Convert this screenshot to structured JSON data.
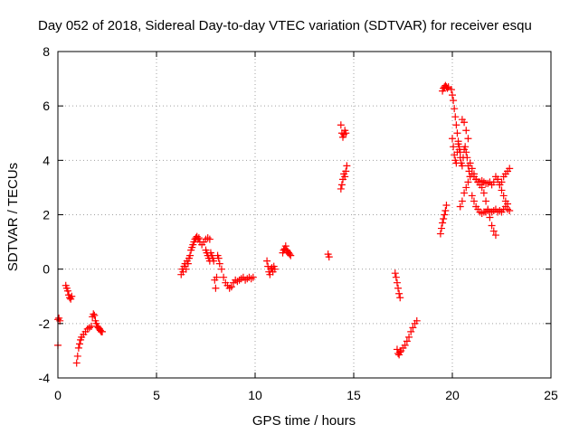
{
  "chart_data": {
    "type": "scatter",
    "title": "Day 052 of 2018, Sidereal Day-to-day VTEC variation (SDTVAR) for receiver esqu",
    "xlabel": "GPS time / hours",
    "ylabel": "SDTVAR / TECUs",
    "xlim": [
      0,
      25
    ],
    "ylim": [
      -4,
      8
    ],
    "xticks": [
      0,
      5,
      10,
      15,
      20,
      25
    ],
    "yticks": [
      -4,
      -2,
      0,
      2,
      4,
      6,
      8
    ],
    "grid": true,
    "marker": "+",
    "color": "#ff0000",
    "segments": [
      {
        "x": [
          0.0,
          0.05,
          0.1
        ],
        "y": [
          -1.85,
          -1.8,
          -1.9
        ]
      },
      {
        "x": [
          0.0
        ],
        "y": [
          -2.8
        ]
      },
      {
        "x": [
          0.4,
          0.45,
          0.5,
          0.55,
          0.6,
          0.65,
          0.7
        ],
        "y": [
          -0.6,
          -0.7,
          -0.8,
          -0.95,
          -1.05,
          -1.1,
          -1.0
        ]
      },
      {
        "x": [
          0.95,
          1.0,
          1.05,
          1.1,
          1.15,
          1.2,
          1.3,
          1.4,
          1.5,
          1.6,
          1.7
        ],
        "y": [
          -3.45,
          -3.2,
          -2.9,
          -2.75,
          -2.6,
          -2.5,
          -2.4,
          -2.3,
          -2.2,
          -2.15,
          -2.1
        ]
      },
      {
        "x": [
          1.75,
          1.8,
          1.85,
          1.9,
          1.95,
          2.0,
          2.05,
          2.1,
          2.15,
          2.2,
          2.25
        ],
        "y": [
          -1.75,
          -1.65,
          -1.7,
          -1.9,
          -2.0,
          -2.1,
          -2.15,
          -2.2,
          -2.25,
          -2.3,
          -2.3
        ]
      },
      {
        "x": [
          6.25,
          6.3,
          6.35,
          6.4,
          6.45,
          6.5,
          6.55,
          6.6,
          6.65,
          6.7,
          6.75,
          6.8,
          6.85,
          6.9,
          6.95,
          7.0,
          7.05,
          7.1,
          7.15,
          7.2,
          7.3,
          7.4,
          7.5,
          7.6,
          7.7
        ],
        "y": [
          -0.2,
          0.0,
          -0.1,
          0.1,
          0.2,
          0.0,
          0.3,
          0.2,
          0.4,
          0.5,
          0.7,
          0.8,
          0.9,
          1.0,
          1.1,
          1.15,
          1.2,
          1.1,
          1.15,
          1.0,
          0.9,
          1.0,
          1.1,
          1.15,
          1.1
        ]
      },
      {
        "x": [
          7.5,
          7.55,
          7.6,
          7.65,
          7.7,
          7.75,
          7.8,
          7.85,
          7.9
        ],
        "y": [
          0.7,
          0.6,
          0.5,
          0.4,
          0.3,
          0.6,
          0.5,
          0.4,
          0.3
        ]
      },
      {
        "x": [
          7.95,
          8.0,
          8.05,
          8.1,
          8.15,
          8.2,
          8.3,
          8.4,
          8.5,
          8.6,
          8.7,
          8.8,
          8.9,
          9.0,
          9.1,
          9.2,
          9.3,
          9.4,
          9.5,
          9.6,
          9.7,
          9.8,
          9.9
        ],
        "y": [
          -0.4,
          -0.7,
          -0.3,
          0.5,
          0.4,
          0.2,
          0.0,
          -0.3,
          -0.5,
          -0.6,
          -0.7,
          -0.65,
          -0.5,
          -0.4,
          -0.45,
          -0.4,
          -0.35,
          -0.3,
          -0.4,
          -0.35,
          -0.3,
          -0.35,
          -0.3
        ]
      },
      {
        "x": [
          10.6,
          10.65,
          10.7,
          10.75,
          10.8,
          10.85,
          10.9,
          10.95,
          11.0
        ],
        "y": [
          0.3,
          0.1,
          -0.1,
          -0.2,
          0.0,
          0.05,
          -0.1,
          0.1,
          0.0
        ]
      },
      {
        "x": [
          11.4,
          11.45,
          11.5,
          11.55,
          11.6,
          11.65,
          11.7,
          11.75,
          11.8
        ],
        "y": [
          0.6,
          0.7,
          0.75,
          0.85,
          0.7,
          0.65,
          0.6,
          0.55,
          0.5
        ]
      },
      {
        "x": [
          13.7,
          13.75
        ],
        "y": [
          0.55,
          0.45
        ]
      },
      {
        "x": [
          14.35,
          14.4,
          14.45,
          14.5,
          14.55,
          14.6
        ],
        "y": [
          5.3,
          5.0,
          4.85,
          4.95,
          5.1,
          5.0
        ]
      },
      {
        "x": [
          14.35,
          14.4,
          14.45,
          14.5,
          14.55,
          14.6,
          14.65
        ],
        "y": [
          2.95,
          3.1,
          3.3,
          3.5,
          3.4,
          3.6,
          3.8
        ]
      },
      {
        "x": [
          17.1,
          17.15,
          17.2,
          17.25,
          17.3,
          17.35
        ],
        "y": [
          -0.15,
          -0.3,
          -0.5,
          -0.7,
          -0.9,
          -1.05
        ]
      },
      {
        "x": [
          17.2,
          17.25,
          17.3,
          17.35,
          17.4,
          17.5,
          17.6,
          17.7,
          17.8,
          17.9,
          18.0,
          18.1,
          18.2
        ],
        "y": [
          -2.95,
          -3.1,
          -3.15,
          -3.05,
          -3.0,
          -2.9,
          -2.8,
          -2.65,
          -2.5,
          -2.3,
          -2.15,
          -2.0,
          -1.9
        ]
      },
      {
        "x": [
          19.4,
          19.45,
          19.5,
          19.55,
          19.6,
          19.65,
          19.7
        ],
        "y": [
          1.3,
          1.5,
          1.7,
          1.85,
          2.0,
          2.15,
          2.35
        ]
      },
      {
        "x": [
          19.5,
          19.55,
          19.6,
          19.65,
          19.7,
          19.75,
          19.8
        ],
        "y": [
          6.55,
          6.65,
          6.7,
          6.75,
          6.7,
          6.65,
          6.7
        ]
      },
      {
        "x": [
          19.95,
          20.0,
          20.05,
          20.1,
          20.15,
          20.2,
          20.25,
          20.3,
          20.35,
          20.4,
          20.5,
          20.6,
          20.7,
          20.8
        ],
        "y": [
          6.6,
          6.4,
          6.2,
          5.9,
          5.6,
          5.3,
          5.0,
          4.7,
          4.5,
          4.3,
          5.5,
          5.4,
          5.1,
          4.8
        ]
      },
      {
        "x": [
          20.0,
          20.05,
          20.1,
          20.15,
          20.2,
          20.25,
          20.3,
          20.35,
          20.4,
          20.45,
          20.5,
          20.55,
          20.6,
          20.65,
          20.7,
          20.75,
          20.8,
          20.85,
          20.9
        ],
        "y": [
          4.8,
          4.5,
          4.2,
          4.0,
          3.9,
          4.3,
          4.6,
          4.4,
          4.1,
          3.9,
          3.8,
          4.1,
          4.4,
          4.5,
          4.3,
          4.1,
          3.8,
          3.6,
          3.4
        ]
      },
      {
        "x": [
          20.4,
          20.5,
          20.6,
          20.7,
          20.8,
          20.9,
          21.0,
          21.1,
          21.2,
          21.3,
          21.4,
          21.5,
          21.6,
          21.7,
          21.8,
          21.9,
          22.0,
          22.1,
          22.2
        ],
        "y": [
          2.3,
          2.5,
          2.8,
          3.0,
          3.2,
          3.4,
          3.5,
          3.4,
          3.3,
          3.2,
          3.1,
          3.0,
          2.8,
          2.5,
          2.2,
          1.9,
          1.6,
          1.4,
          1.25
        ]
      },
      {
        "x": [
          20.9,
          21.0,
          21.1,
          21.2,
          21.3,
          21.4,
          21.5,
          21.6,
          21.7,
          21.8,
          21.9,
          22.0,
          22.1,
          22.2,
          22.3,
          22.4,
          22.5,
          22.6,
          22.7,
          22.8,
          22.9
        ],
        "y": [
          3.9,
          3.7,
          3.5,
          3.3,
          3.2,
          3.2,
          3.25,
          3.2,
          3.15,
          3.15,
          3.2,
          3.1,
          3.2,
          3.4,
          3.3,
          3.1,
          3.2,
          3.4,
          3.5,
          3.6,
          3.7
        ]
      },
      {
        "x": [
          21.0,
          21.1,
          21.2,
          21.3,
          21.4,
          21.5,
          21.6,
          21.7,
          21.8,
          21.9,
          22.0,
          22.1,
          22.2,
          22.3,
          22.4,
          22.5,
          22.6,
          22.7,
          22.8,
          22.9
        ],
        "y": [
          2.7,
          2.5,
          2.3,
          2.2,
          2.1,
          2.05,
          2.1,
          2.1,
          2.15,
          2.1,
          2.1,
          2.15,
          2.2,
          2.1,
          2.15,
          2.1,
          2.2,
          2.3,
          2.2,
          2.15
        ]
      },
      {
        "x": [
          22.3,
          22.4,
          22.5,
          22.6,
          22.7,
          22.8
        ],
        "y": [
          3.3,
          3.1,
          2.9,
          2.7,
          2.5,
          2.4
        ]
      }
    ]
  }
}
